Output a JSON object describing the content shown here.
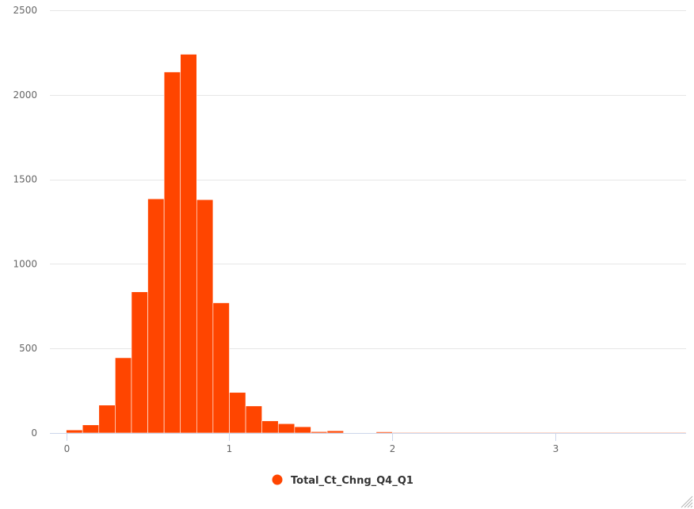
{
  "chart_data": {
    "type": "bar",
    "histogram": true,
    "series": [
      {
        "name": "Total_Ct_Chng_Q4_Q1",
        "color": "#ff4500",
        "bins": [
          {
            "x0": 0.0,
            "x1": 0.1,
            "count": 18
          },
          {
            "x0": 0.1,
            "x1": 0.2,
            "count": 48
          },
          {
            "x0": 0.2,
            "x1": 0.3,
            "count": 165
          },
          {
            "x0": 0.3,
            "x1": 0.4,
            "count": 445
          },
          {
            "x0": 0.4,
            "x1": 0.5,
            "count": 835
          },
          {
            "x0": 0.5,
            "x1": 0.6,
            "count": 1385
          },
          {
            "x0": 0.6,
            "x1": 0.7,
            "count": 2135
          },
          {
            "x0": 0.7,
            "x1": 0.8,
            "count": 2240
          },
          {
            "x0": 0.8,
            "x1": 0.9,
            "count": 1380
          },
          {
            "x0": 0.9,
            "x1": 1.0,
            "count": 770
          },
          {
            "x0": 1.0,
            "x1": 1.1,
            "count": 240
          },
          {
            "x0": 1.1,
            "x1": 1.2,
            "count": 160
          },
          {
            "x0": 1.2,
            "x1": 1.3,
            "count": 72
          },
          {
            "x0": 1.3,
            "x1": 1.4,
            "count": 55
          },
          {
            "x0": 1.4,
            "x1": 1.5,
            "count": 37
          },
          {
            "x0": 1.5,
            "x1": 1.6,
            "count": 8
          },
          {
            "x0": 1.6,
            "x1": 1.7,
            "count": 13
          },
          {
            "x0": 1.9,
            "x1": 2.0,
            "count": 7
          },
          {
            "x0": 2.0,
            "x1": 3.8,
            "count": 1
          }
        ]
      }
    ],
    "xlim": [
      -0.1,
      3.8
    ],
    "ylim": [
      0,
      2500
    ],
    "x_ticks": [
      "0",
      "1",
      "2",
      "3"
    ],
    "y_ticks": [
      "0",
      "500",
      "1000",
      "1500",
      "2000",
      "2500"
    ],
    "xlabel": "",
    "ylabel": "",
    "title": "",
    "grid": "horizontal",
    "legend": {
      "position": "bottom-center",
      "marker": "circle"
    }
  }
}
